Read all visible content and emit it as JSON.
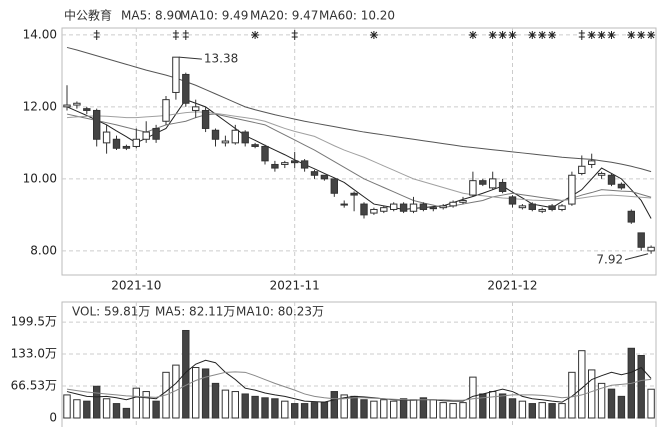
{
  "chart_data": [
    {
      "type": "candlestick",
      "title": "中公教育",
      "categories": [
        null,
        null,
        null,
        null,
        null,
        null,
        null,
        "2021-10",
        null,
        null,
        null,
        null,
        null,
        null,
        null,
        null,
        null,
        null,
        null,
        null,
        null,
        null,
        null,
        "2021-11",
        null,
        null,
        null,
        null,
        null,
        null,
        null,
        null,
        null,
        null,
        null,
        null,
        null,
        null,
        null,
        null,
        null,
        null,
        null,
        null,
        null,
        "2021-12",
        null,
        null,
        null,
        null,
        null,
        null,
        null,
        null,
        null,
        null,
        null,
        null,
        null,
        null
      ],
      "open": [
        12.0,
        12.05,
        11.95,
        11.9,
        11.0,
        11.1,
        10.9,
        10.9,
        11.1,
        11.4,
        11.6,
        12.4,
        12.9,
        11.9,
        11.9,
        11.35,
        11.0,
        11.0,
        11.3,
        10.95,
        10.9,
        10.4,
        10.4,
        10.5,
        10.5,
        10.2,
        10.1,
        10.0,
        9.3,
        9.6,
        9.3,
        9.05,
        9.1,
        9.15,
        9.3,
        9.1,
        9.3,
        9.2,
        9.2,
        9.25,
        9.35,
        9.55,
        9.95,
        9.75,
        9.9,
        9.5,
        9.2,
        9.3,
        9.1,
        9.25,
        9.15,
        9.3,
        10.15,
        10.4,
        10.1,
        10.1,
        9.85,
        9.1,
        8.5,
        8.0
      ],
      "high": [
        12.6,
        12.15,
        12.0,
        11.95,
        11.5,
        11.2,
        10.95,
        11.4,
        11.6,
        11.5,
        12.3,
        13.38,
        12.95,
        12.2,
        12.0,
        11.4,
        11.2,
        11.5,
        11.35,
        11.0,
        10.95,
        10.5,
        10.5,
        10.75,
        10.55,
        10.25,
        10.1,
        10.0,
        9.4,
        9.65,
        9.35,
        9.2,
        9.25,
        9.35,
        9.35,
        9.5,
        9.35,
        9.25,
        9.3,
        9.4,
        9.5,
        10.2,
        10.0,
        10.2,
        10.0,
        9.55,
        9.3,
        9.35,
        9.2,
        9.3,
        9.3,
        10.2,
        10.65,
        10.7,
        10.2,
        10.15,
        9.9,
        9.15,
        8.5,
        8.15
      ],
      "low": [
        11.9,
        11.95,
        11.8,
        10.9,
        10.7,
        10.8,
        10.8,
        10.85,
        11.0,
        11.0,
        11.5,
        12.2,
        12.0,
        11.7,
        11.3,
        10.9,
        10.9,
        10.95,
        10.9,
        10.85,
        10.4,
        10.2,
        10.3,
        10.3,
        10.2,
        10.0,
        9.95,
        9.5,
        9.2,
        9.1,
        8.9,
        9.0,
        9.05,
        9.1,
        9.05,
        9.05,
        9.1,
        9.1,
        9.15,
        9.2,
        9.3,
        9.5,
        9.8,
        9.7,
        9.6,
        9.2,
        9.15,
        9.1,
        9.05,
        9.1,
        9.1,
        9.25,
        10.1,
        10.3,
        10.0,
        9.8,
        9.7,
        8.75,
        8.0,
        7.92
      ],
      "close": [
        12.05,
        12.1,
        11.9,
        11.1,
        11.3,
        10.85,
        10.85,
        11.1,
        11.3,
        11.1,
        12.2,
        13.38,
        12.1,
        12.0,
        11.4,
        11.1,
        11.05,
        11.35,
        11.0,
        10.9,
        10.5,
        10.3,
        10.45,
        10.45,
        10.3,
        10.1,
        10.0,
        9.6,
        9.3,
        9.55,
        9.0,
        9.15,
        9.2,
        9.3,
        9.1,
        9.3,
        9.15,
        9.2,
        9.25,
        9.35,
        9.4,
        9.95,
        9.85,
        10.0,
        9.65,
        9.3,
        9.25,
        9.15,
        9.15,
        9.15,
        9.25,
        10.1,
        10.35,
        10.5,
        10.15,
        9.85,
        9.75,
        8.8,
        8.1,
        8.1
      ],
      "up_color": "#ffffff",
      "down_color": "#444444",
      "edge_color": "#333333",
      "series": [
        {
          "name": "MA5: 8.90",
          "color": "#222222",
          "values": [
            12.0,
            11.88,
            11.76,
            11.63,
            11.5,
            11.33,
            11.17,
            11.0,
            11.13,
            11.27,
            11.4,
            11.8,
            12.2,
            12.1,
            12.0,
            11.8,
            11.6,
            11.4,
            11.2,
            11.07,
            10.93,
            10.8,
            10.67,
            10.53,
            10.4,
            10.28,
            10.15,
            10.03,
            9.9,
            9.7,
            9.5,
            9.3,
            9.25,
            9.2,
            9.15,
            9.18,
            9.2,
            9.23,
            9.25,
            9.34,
            9.43,
            9.51,
            9.6,
            9.7,
            9.8,
            9.63,
            9.47,
            9.3,
            9.25,
            9.2,
            9.37,
            9.53,
            9.7,
            10.0,
            10.3,
            10.15,
            10.0,
            9.7,
            9.4,
            8.9
          ]
        },
        {
          "name": "MA10: 9.49",
          "color": "#777777",
          "values": [
            11.8,
            11.74,
            11.68,
            11.62,
            11.56,
            11.5,
            11.43,
            11.36,
            11.3,
            11.4,
            11.5,
            11.55,
            11.6,
            11.7,
            11.78,
            11.8,
            11.74,
            11.68,
            11.62,
            11.56,
            11.5,
            11.36,
            11.22,
            11.08,
            10.94,
            10.8,
            10.64,
            10.48,
            10.32,
            10.16,
            10.0,
            9.88,
            9.76,
            9.64,
            9.52,
            9.4,
            9.33,
            9.27,
            9.2,
            9.25,
            9.3,
            9.35,
            9.4,
            9.5,
            9.55,
            9.6,
            9.56,
            9.52,
            9.48,
            9.44,
            9.4,
            9.46,
            9.55,
            9.62,
            9.7,
            9.68,
            9.66,
            9.65,
            9.57,
            9.49
          ]
        },
        {
          "name": "MA20: 9.47",
          "color": "#a0a0a0",
          "values": [
            11.7,
            11.72,
            11.74,
            11.75,
            11.74,
            11.72,
            11.7,
            11.7,
            11.72,
            11.74,
            11.76,
            11.8,
            11.84,
            11.86,
            11.85,
            11.82,
            11.78,
            11.74,
            11.7,
            11.66,
            11.6,
            11.5,
            11.4,
            11.32,
            11.25,
            11.18,
            11.05,
            10.92,
            10.8,
            10.7,
            10.6,
            10.48,
            10.36,
            10.24,
            10.12,
            10.0,
            9.92,
            9.84,
            9.76,
            9.68,
            9.6,
            9.56,
            9.53,
            9.5,
            9.47,
            9.45,
            9.43,
            9.41,
            9.4,
            9.4,
            9.4,
            9.43,
            9.47,
            9.51,
            9.54,
            9.55,
            9.53,
            9.51,
            9.49,
            9.47
          ]
        },
        {
          "name": "MA60: 10.20",
          "color": "#555555",
          "values": [
            13.65,
            13.58,
            13.5,
            13.42,
            13.34,
            13.26,
            13.18,
            13.1,
            13.02,
            12.95,
            12.88,
            12.8,
            12.7,
            12.6,
            12.48,
            12.36,
            12.24,
            12.12,
            12.0,
            11.92,
            11.85,
            11.78,
            11.72,
            11.66,
            11.6,
            11.55,
            11.5,
            11.45,
            11.4,
            11.35,
            11.3,
            11.26,
            11.22,
            11.18,
            11.14,
            11.1,
            11.06,
            11.02,
            10.98,
            10.94,
            10.9,
            10.87,
            10.84,
            10.81,
            10.78,
            10.75,
            10.72,
            10.69,
            10.66,
            10.63,
            10.6,
            10.58,
            10.56,
            10.54,
            10.5,
            10.46,
            10.41,
            10.35,
            10.28,
            10.2
          ]
        }
      ],
      "annotations": [
        {
          "label": "13.38",
          "value": 13.38
        },
        {
          "label": "7.92",
          "value": 7.92
        }
      ],
      "ylim": [
        7.33,
        14.19
      ],
      "yticks": [
        {
          "value": 8,
          "label": "8.00"
        },
        {
          "value": 10,
          "label": "10.00"
        },
        {
          "value": 12,
          "label": "12.00"
        },
        {
          "value": 14,
          "label": "14.00"
        }
      ],
      "grid": true
    },
    {
      "type": "bar",
      "title": "VOL: 59.81万",
      "values": [
        48,
        38,
        35,
        66,
        40,
        30,
        20,
        62,
        55,
        35,
        95,
        110,
        182,
        105,
        102,
        72,
        58,
        55,
        50,
        45,
        42,
        40,
        35,
        30,
        30,
        32,
        33,
        55,
        48,
        45,
        38,
        35,
        38,
        35,
        40,
        38,
        42,
        38,
        32,
        30,
        32,
        85,
        50,
        55,
        50,
        40,
        35,
        30,
        32,
        30,
        30,
        95,
        140,
        100,
        72,
        60,
        45,
        145,
        130,
        59.81
      ],
      "series": [
        {
          "name": "MA5: 82.11万",
          "color": "#222222",
          "values": [
            55,
            50,
            45,
            44,
            45,
            42,
            38,
            44,
            42,
            40,
            55,
            72,
            95,
            112,
            120,
            115,
            95,
            80,
            62,
            58,
            52,
            48,
            45,
            40,
            35,
            34,
            33,
            38,
            42,
            45,
            44,
            42,
            40,
            38,
            37,
            37,
            38,
            38,
            36,
            35,
            35,
            45,
            50,
            55,
            60,
            55,
            45,
            40,
            38,
            35,
            33,
            45,
            62,
            80,
            88,
            95,
            90,
            95,
            105,
            82.11
          ]
        },
        {
          "name": "MA10: 80.23万",
          "color": "#888888",
          "values": [
            60,
            57,
            54,
            52,
            50,
            48,
            46,
            45,
            44,
            43,
            48,
            57,
            68,
            78,
            85,
            90,
            95,
            96,
            95,
            88,
            80,
            72,
            65,
            58,
            50,
            45,
            42,
            40,
            40,
            42,
            42,
            41,
            40,
            39,
            38,
            38,
            38,
            38,
            38,
            37,
            37,
            40,
            42,
            44,
            46,
            48,
            48,
            48,
            47,
            45,
            42,
            44,
            48,
            55,
            62,
            68,
            70,
            72,
            78,
            80.23
          ]
        }
      ],
      "ylim": [
        0,
        235
      ],
      "yticks": [
        0,
        {
          "value": 66.53,
          "label": "66.53万"
        },
        {
          "value": 133.0,
          "label": "133.0万"
        },
        {
          "value": 199.5,
          "label": "199.5万"
        }
      ],
      "grid": true
    }
  ]
}
